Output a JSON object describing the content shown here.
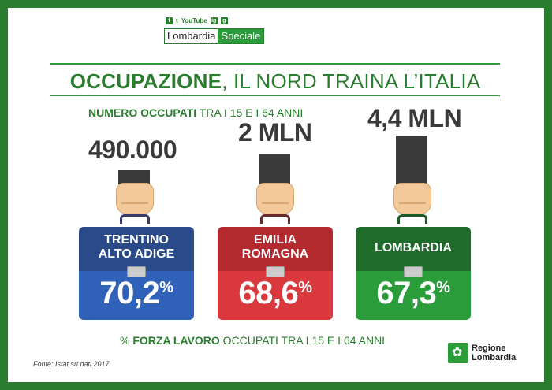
{
  "header": {
    "social": [
      "f",
      "t",
      "YouTube",
      "ig",
      "g"
    ],
    "brand_left": "Lombardia",
    "brand_right": "Speciale"
  },
  "title": {
    "bold": "OCCUPAZIONE",
    "rest": ", IL NORD TRAINA L’ITALIA"
  },
  "subtitle": {
    "bold": "NUMERO OCCUPATI",
    "rest": " TRA I 15 E I 64 ANNI"
  },
  "regions": [
    {
      "value": "490.000",
      "label": "TRENTINO\nALTO ADIGE",
      "pct": "70,2",
      "pct_sign": "%",
      "color": "blue"
    },
    {
      "value": "2 MLN",
      "label": "EMILIA\nROMAGNA",
      "pct": "68,6",
      "pct_sign": "%",
      "color": "red"
    },
    {
      "value": "4,4 MLN",
      "label": "LOMBARDIA",
      "pct": "67,3",
      "pct_sign": "%",
      "color": "green"
    }
  ],
  "footer": {
    "pre": "% ",
    "bold": "FORZA LAVORO",
    "rest": " OCCUPATI TRA I 15 E I 64 ANNI"
  },
  "source": "Fonte: Istat su dati 2017",
  "logo": {
    "line1": "Regione",
    "line2": "Lombardia"
  }
}
